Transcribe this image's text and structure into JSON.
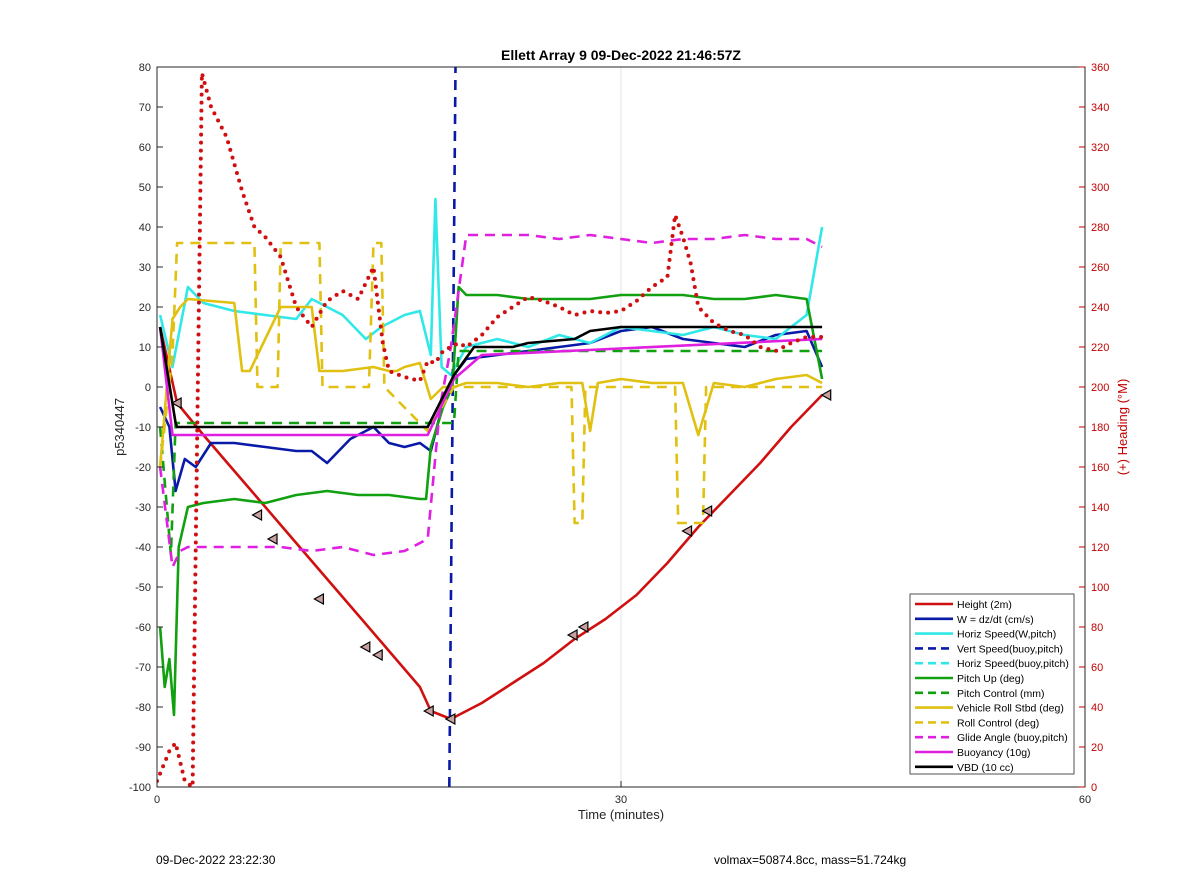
{
  "chart_data": {
    "type": "line",
    "title": "Ellett Array 9 09-Dec-2022 21:46:57Z",
    "xlabel": "Time (minutes)",
    "ylabel": "p5340447",
    "y2label": "(+) Heading (°M)",
    "xlim": [
      0,
      60
    ],
    "ylim": [
      -100,
      80
    ],
    "y2lim": [
      0,
      360
    ],
    "x_ticks": [
      0,
      30,
      60
    ],
    "y_ticks": [
      -100,
      -90,
      -80,
      -70,
      -60,
      -50,
      -40,
      -30,
      -20,
      -10,
      0,
      10,
      20,
      30,
      40,
      50,
      60,
      70,
      80
    ],
    "y2_ticks": [
      0,
      20,
      40,
      60,
      80,
      100,
      120,
      140,
      160,
      180,
      200,
      220,
      240,
      260,
      280,
      300,
      320,
      340,
      360
    ],
    "grid": "x-only",
    "legend_position": "bottom-right",
    "colors": {
      "red": "#d01010",
      "blue": "#0a1aa8",
      "cyan": "#30e8e8",
      "green": "#10a010",
      "yellow": "#e0c010",
      "magenta": "#e020e0",
      "black": "#000000",
      "right_axis": "#c00000"
    },
    "series": [
      {
        "name": "Height (2m)",
        "color": "red",
        "style": "solid",
        "x": [
          0.2,
          1.3,
          3,
          5,
          7,
          9,
          11,
          13,
          15,
          17,
          17.7,
          19,
          21,
          23,
          25,
          27,
          29,
          31,
          33,
          35,
          37,
          39,
          41,
          43
        ],
        "y": [
          15,
          -4,
          -12,
          -21,
          -30,
          -39,
          -48,
          -57,
          -66,
          -75,
          -81,
          -83,
          -79,
          -74,
          -69,
          -63,
          -58,
          -52,
          -44,
          -35,
          -27,
          -19,
          -10,
          -2
        ]
      },
      {
        "name": "W = dz/dt (cm/s)",
        "color": "blue",
        "style": "solid",
        "x": [
          0.2,
          0.8,
          1.2,
          1.8,
          2.5,
          3.5,
          5,
          7,
          9,
          10,
          11,
          12.5,
          14,
          15,
          16,
          17,
          17.7,
          18.5,
          19.2,
          20,
          22,
          24,
          26,
          28,
          30,
          32,
          34,
          36,
          38,
          40,
          42,
          43
        ],
        "y": [
          -5,
          -10,
          -26,
          -18,
          -20,
          -14,
          -14,
          -15,
          -16,
          -16,
          -19,
          -13,
          -10,
          -14,
          -15,
          -14,
          -16,
          -4,
          3,
          7,
          8,
          9,
          10,
          11,
          14,
          15,
          12,
          11,
          10,
          13,
          14,
          5
        ]
      },
      {
        "name": "Horiz Speed(W,pitch)",
        "color": "cyan",
        "style": "solid",
        "x": [
          0.2,
          1,
          1.5,
          2,
          3,
          5,
          7,
          9,
          10,
          12,
          13.5,
          14.5,
          16,
          17,
          17.7,
          18,
          18.4,
          19,
          20,
          22,
          24,
          26,
          28,
          30,
          32,
          34,
          36,
          38,
          40,
          42,
          43
        ],
        "y": [
          18,
          5,
          15,
          25,
          21,
          19,
          18,
          17,
          22,
          18,
          12,
          15,
          18,
          19,
          8,
          47,
          5,
          3,
          10,
          12,
          10,
          13,
          11,
          15,
          14,
          13,
          15,
          13,
          12,
          18,
          40
        ]
      },
      {
        "name": "Vert Speed(buoy,pitch)",
        "color": "blue",
        "style": "dashed",
        "x": [
          18.9,
          19.3
        ],
        "y": [
          -100,
          80
        ]
      },
      {
        "name": "Horiz Speed(buoy,pitch)",
        "color": "cyan",
        "style": "dashed",
        "x": [],
        "y": []
      },
      {
        "name": "Pitch Up (deg)",
        "color": "green",
        "style": "solid",
        "x": [
          0.2,
          0.5,
          0.8,
          1.1,
          1.4,
          2,
          3,
          5,
          7,
          9,
          11,
          13,
          15,
          17,
          17.4,
          17.7,
          18.5,
          19.1,
          19.5,
          20,
          22,
          24,
          26,
          28,
          30,
          32,
          34,
          36,
          38,
          40,
          42,
          43
        ],
        "y": [
          -60,
          -75,
          -68,
          -82,
          -40,
          -30,
          -29,
          -28,
          -29,
          -27,
          -26,
          -27,
          -27,
          -28,
          -28,
          -15,
          -5,
          0,
          25,
          23,
          23,
          22,
          22,
          22,
          23,
          23,
          23,
          22,
          22,
          23,
          22,
          2
        ]
      },
      {
        "name": "Pitch Control (mm)",
        "color": "green",
        "style": "dashed",
        "x": [
          0.2,
          0.9,
          1.2,
          17.5,
          19.2,
          19.5,
          43
        ],
        "y": [
          -10,
          -42,
          -9,
          -9,
          -9,
          9,
          9
        ]
      },
      {
        "name": "Vehicle Roll Stbd (deg)",
        "color": "yellow",
        "style": "solid",
        "x": [
          0.2,
          1,
          1.5,
          2,
          5,
          5.5,
          6,
          8,
          10,
          10.5,
          12,
          14,
          15,
          15.5,
          16,
          17,
          17.7,
          18.5,
          19.2,
          20,
          22,
          24,
          26,
          27.5,
          28,
          28.5,
          30,
          32,
          34,
          35,
          36,
          38,
          40,
          42,
          43
        ],
        "y": [
          -20,
          17,
          20,
          22,
          21,
          4,
          4,
          20,
          20,
          4,
          4,
          5,
          4,
          4,
          5,
          6,
          -3,
          0,
          0,
          1,
          1,
          0,
          1,
          1,
          -11,
          1,
          2,
          1,
          1,
          -12,
          1,
          0,
          2,
          3,
          1
        ]
      },
      {
        "name": "Roll Control (deg)",
        "color": "yellow",
        "style": "dashed",
        "x": [
          0.2,
          1,
          1.3,
          6.3,
          6.5,
          7.8,
          8,
          10.5,
          10.7,
          13.7,
          14,
          14.5,
          14.7,
          17.5,
          19.2,
          26.8,
          27,
          27.5,
          27.7,
          33.5,
          33.7,
          35.3,
          35.5,
          43
        ],
        "y": [
          -20,
          8,
          36,
          36,
          0,
          0,
          36,
          36,
          0,
          0,
          36,
          36,
          0,
          -11,
          0,
          0,
          -34,
          -34,
          0,
          0,
          -34,
          -34,
          0,
          0
        ]
      },
      {
        "name": "Glide Angle (buoy,pitch)",
        "color": "magenta",
        "style": "dashed",
        "x": [
          0.2,
          1,
          1.5,
          2,
          4,
          6,
          8,
          10,
          12,
          14,
          16,
          17.5,
          18.3,
          19,
          20,
          22,
          24,
          26,
          28,
          30,
          32,
          34,
          36,
          38,
          40,
          42,
          43
        ],
        "y": [
          -20,
          -45,
          -41,
          -40,
          -40,
          -40,
          -40,
          -41,
          -40,
          -42,
          -41,
          -38,
          -5,
          10,
          38,
          38,
          38,
          37,
          38,
          37,
          36,
          37,
          37,
          38,
          37,
          37,
          35
        ]
      },
      {
        "name": "Buoyancy (10g)",
        "color": "magenta",
        "style": "solid",
        "x": [
          0.2,
          1,
          1.2,
          17.5,
          19.2,
          21,
          43
        ],
        "y": [
          15,
          -12,
          -12,
          -12,
          2,
          8,
          12
        ]
      },
      {
        "name": "VBD (10 cc)",
        "color": "black",
        "style": "solid",
        "x": [
          0.2,
          1.2,
          1.3,
          17.5,
          19.2,
          20.5,
          23,
          24,
          27,
          28,
          30,
          43
        ],
        "y": [
          15,
          -9,
          -10,
          -10,
          3,
          10,
          10,
          11,
          12,
          14,
          15,
          15
        ]
      },
      {
        "name": "(+) Heading (°M)",
        "color": "red",
        "style": "dotted",
        "axis": "right",
        "x": [
          0,
          0.8,
          1.2,
          1.8,
          2.3,
          2.9,
          3.5,
          4.5,
          5.5,
          6.3,
          7,
          8,
          9,
          10,
          11,
          12,
          13,
          14,
          14.6,
          15,
          16,
          17,
          17.5,
          18,
          18.5,
          19.5,
          20,
          21,
          22,
          23,
          24,
          25,
          26,
          27,
          28,
          29,
          30,
          31,
          32,
          33,
          33.5,
          34,
          34.5,
          35,
          36,
          37,
          38,
          39,
          40,
          41,
          42,
          43
        ],
        "y": [
          3,
          18,
          22,
          3,
          0,
          357,
          340,
          325,
          298,
          280,
          275,
          265,
          240,
          230,
          243,
          248,
          244,
          260,
          222,
          208,
          205,
          203,
          213,
          212,
          218,
          222,
          220,
          226,
          235,
          240,
          245,
          243,
          240,
          236,
          238,
          237,
          238,
          243,
          250,
          255,
          286,
          275,
          262,
          240,
          232,
          228,
          226,
          220,
          218,
          222,
          225,
          225
        ]
      }
    ],
    "markers": {
      "description": "triangle markers on Height line",
      "x": [
        1.3,
        6.5,
        7.5,
        10.5,
        13.5,
        14.3,
        17.6,
        19.0,
        26.9,
        27.6,
        34.3,
        35.6,
        43.3
      ],
      "y": [
        -4,
        -32,
        -38,
        -53,
        -65,
        -67,
        -81,
        -83,
        -62,
        -60,
        -36,
        -31,
        -2
      ]
    }
  },
  "footer": {
    "left": "09-Dec-2022 23:22:30",
    "right": "volmax=50874.8cc, mass=51.724kg"
  }
}
